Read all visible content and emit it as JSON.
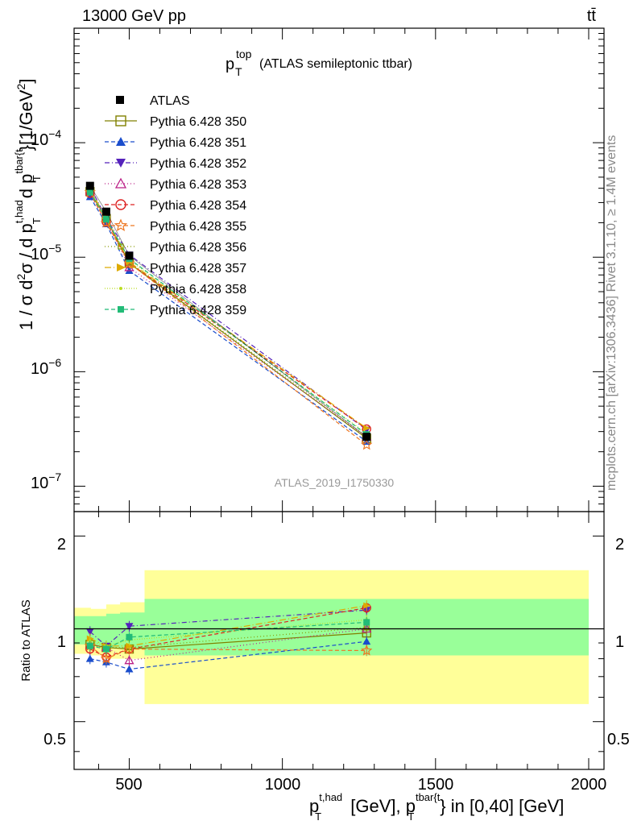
{
  "header": {
    "beam_label": "13000 GeV pp",
    "process_label": "tt̄",
    "plot_title_main": "p",
    "plot_title_sup": "top",
    "plot_title_sub": "T",
    "plot_title_rest": "(ATLAS semileptonic ttbar)",
    "analysis_id": "ATLAS_2019_I1750330"
  },
  "side_labels": {
    "rivet": "Rivet 3.1.10, ≥ 1.4M events",
    "mcplots": "mcplots.cern.ch [arXiv:1306.3436]"
  },
  "axes": {
    "ylabel_main": "1 / σ d²σ / d p_T^{t,had} d p_T^{tbar{t}} [1/GeV²]",
    "ylabel_main_parts": {
      "a": "1 / σ d",
      "b": "2",
      "c": "σ / d p",
      "d": "t,had",
      "e": "T",
      "f": " d p",
      "g": "tbar{t",
      "h": "T",
      "i": "}[1/GeV",
      "j": "2",
      "k": "]"
    },
    "ylabel_ratio": "Ratio to ATLAS",
    "xlabel_parts": {
      "a": "p",
      "b": "t,had",
      "c": "T",
      "d": " [GeV], p",
      "e": "tbar{t",
      "f": "T",
      "g": "} in [0,40] [GeV]"
    },
    "x_ticks": [
      "500",
      "1000",
      "1500",
      "2000"
    ],
    "y_ticks_main": [
      {
        "base": "10",
        "exp": "−4"
      },
      {
        "base": "10",
        "exp": "−5"
      },
      {
        "base": "10",
        "exp": "−6"
      },
      {
        "base": "10",
        "exp": "−7"
      }
    ],
    "y_ticks_ratio": [
      "0.5",
      "1",
      "2"
    ]
  },
  "colors": {
    "band_outer": "#ffff99",
    "band_inner": "#99ff99",
    "data": "#000000"
  },
  "chart_data": {
    "type": "line",
    "xlim": [
      320,
      2050
    ],
    "ylim_main": [
      6e-08,
      0.001
    ],
    "ylog_main": true,
    "ylim_ratio": [
      0.35,
      2.4
    ],
    "ylog_ratio": true,
    "legend_position": "top-left",
    "grid": false,
    "x": [
      372,
      425,
      500,
      1275
    ],
    "data": {
      "name": "ATLAS",
      "values": [
        4.2e-05,
        2.5e-05,
        1.03e-05,
        2.7e-07
      ]
    },
    "bands": [
      {
        "x": [
          320,
          375,
          375,
          425,
          425,
          470,
          470,
          550,
          550,
          2000
        ],
        "outer_lo": [
          0.83,
          0.83,
          0.82,
          0.82,
          0.8,
          0.8,
          0.8,
          0.8,
          0.57,
          0.57
        ],
        "outer_hi": [
          1.17,
          1.17,
          1.16,
          1.16,
          1.2,
          1.2,
          1.22,
          1.22,
          1.55,
          1.55
        ],
        "inner_lo": [
          0.89,
          0.89,
          0.88,
          0.88,
          0.87,
          0.87,
          0.86,
          0.86,
          0.82,
          0.82
        ],
        "inner_hi": [
          1.1,
          1.1,
          1.1,
          1.1,
          1.12,
          1.12,
          1.13,
          1.13,
          1.25,
          1.25
        ]
      }
    ],
    "series": [
      {
        "name": "Pythia 6.428 350",
        "color": "#808000",
        "dash": "",
        "marker": "open-square",
        "ratio": [
          0.89,
          0.87,
          0.86,
          0.97
        ]
      },
      {
        "name": "Pythia 6.428 351",
        "color": "#1a4dcc",
        "dash": "5,3",
        "marker": "triangle-up",
        "ratio": [
          0.8,
          0.78,
          0.74,
          0.91
        ]
      },
      {
        "name": "Pythia 6.428 352",
        "color": "#5522bb",
        "dash": "6,3,1,3",
        "marker": "triangle-down",
        "ratio": [
          0.98,
          0.88,
          1.02,
          1.15
        ]
      },
      {
        "name": "Pythia 6.428 353",
        "color": "#bb2288",
        "dash": "1,3",
        "marker": "open-triangle",
        "ratio": [
          0.89,
          0.87,
          0.79,
          1.0
        ]
      },
      {
        "name": "Pythia 6.428 354",
        "color": "#dd2222",
        "dash": "5,3",
        "marker": "open-circle",
        "ratio": [
          0.86,
          0.81,
          0.86,
          1.17
        ]
      },
      {
        "name": "Pythia 6.428 355",
        "color": "#ee7722",
        "dash": "5,3",
        "marker": "star",
        "ratio": [
          0.88,
          0.8,
          0.86,
          0.85
        ]
      },
      {
        "name": "Pythia 6.428 356",
        "color": "#889900",
        "dash": "1,3",
        "marker": "open-square-small",
        "ratio": [
          0.88,
          0.87,
          0.87,
          1.01
        ]
      },
      {
        "name": "Pythia 6.428 357",
        "color": "#ddaa00",
        "dash": "8,3,1,3",
        "marker": "tri-right",
        "ratio": [
          0.93,
          0.88,
          0.88,
          1.19
        ]
      },
      {
        "name": "Pythia 6.428 358",
        "color": "#bbdd22",
        "dash": "1,2",
        "marker": "dot",
        "ratio": [
          0.91,
          0.88,
          0.92,
          1.07
        ]
      },
      {
        "name": "Pythia 6.428 359",
        "color": "#22bb77",
        "dash": "5,3",
        "marker": "filled-square",
        "ratio": [
          0.88,
          0.86,
          0.94,
          1.05
        ]
      }
    ]
  }
}
